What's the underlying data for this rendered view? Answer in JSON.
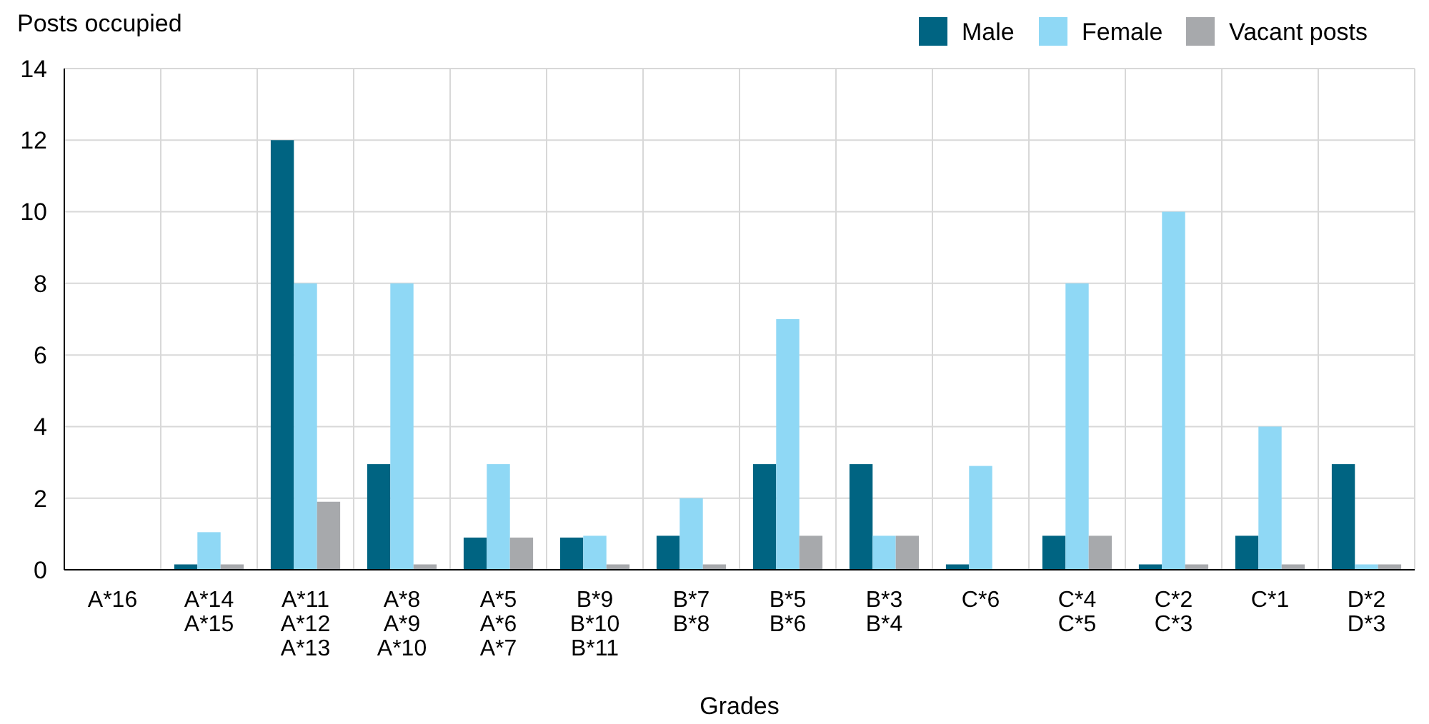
{
  "chart_data": {
    "type": "bar",
    "xlabel": "Grades",
    "ylabel": "Posts occupied",
    "categories": [
      "A*16",
      "A*14\nA*15",
      "A*11\nA*12\nA*13",
      "A*8\nA*9\nA*10",
      "A*5\nA*6\nA*7",
      "B*9\nB*10\nB*11",
      "B*7\nB*8",
      "B*5\nB*6",
      "B*3\nB*4",
      "C*6",
      "C*4\nC*5",
      "C*2\nC*3",
      "C*1",
      "D*2\nD*3"
    ],
    "series": [
      {
        "name": "Male",
        "color": "#006482",
        "values": [
          0,
          0.15,
          12,
          2.95,
          0.9,
          0.9,
          0.95,
          2.95,
          2.95,
          0.15,
          0.95,
          0.15,
          0.95,
          2.95
        ]
      },
      {
        "name": "Female",
        "color": "#8fd8f5",
        "values": [
          0,
          1.05,
          8,
          8,
          2.95,
          0.95,
          2,
          7,
          0.95,
          2.9,
          8,
          10,
          4,
          0.15
        ]
      },
      {
        "name": "Vacant posts",
        "color": "#a7a9ac",
        "values": [
          0,
          0.15,
          1.9,
          0.15,
          0.9,
          0.15,
          0.15,
          0.95,
          0.95,
          0,
          0.95,
          0.15,
          0.15,
          0.15
        ]
      }
    ],
    "ylim": [
      0,
      14
    ],
    "yticks": [
      0,
      2,
      4,
      6,
      8,
      10,
      12,
      14
    ],
    "grid": true,
    "legend": "top right"
  }
}
